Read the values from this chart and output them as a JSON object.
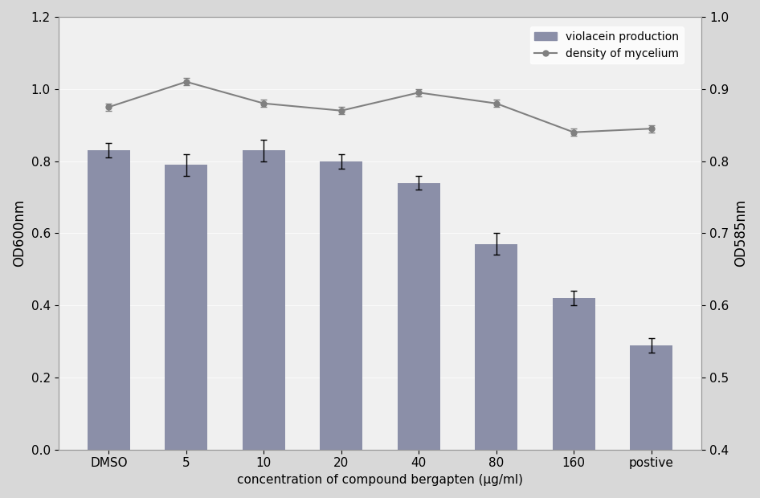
{
  "categories": [
    "DMSO",
    "5",
    "10",
    "20",
    "40",
    "80",
    "160",
    "postive"
  ],
  "bar_values": [
    0.83,
    0.79,
    0.83,
    0.8,
    0.74,
    0.57,
    0.42,
    0.29
  ],
  "bar_errors": [
    0.02,
    0.03,
    0.03,
    0.02,
    0.02,
    0.03,
    0.02,
    0.02
  ],
  "line_values": [
    0.875,
    0.91,
    0.88,
    0.87,
    0.895,
    0.88,
    0.84,
    0.845
  ],
  "line_errors": [
    0.005,
    0.005,
    0.005,
    0.005,
    0.005,
    0.005,
    0.005,
    0.005
  ],
  "bar_color": "#8B8FA8",
  "line_color": "#808080",
  "ylabel_left": "OD600nm",
  "ylabel_right": "OD585nm",
  "xlabel": "concentration of compound bergapten (μg/ml)",
  "ylim_left": [
    0,
    1.2
  ],
  "ylim_right": [
    0.4,
    1.0
  ],
  "yticks_left": [
    0,
    0.2,
    0.4,
    0.6,
    0.8,
    1.0,
    1.2
  ],
  "yticks_right": [
    0.4,
    0.5,
    0.6,
    0.7,
    0.8,
    0.9,
    1.0
  ],
  "legend_bar_label": "violacein production",
  "legend_line_label": "density of mycelium",
  "background_color": "#f0f0f0",
  "figure_bg": "#d8d8d8"
}
